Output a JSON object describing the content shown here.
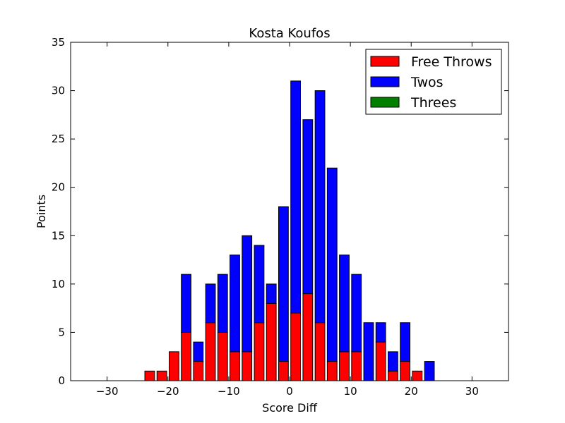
{
  "chart_data": {
    "type": "bar",
    "stacked": true,
    "title": "Kosta Koufos",
    "xlabel": "Score Diff",
    "ylabel": "Points",
    "xlim": [
      -36,
      36
    ],
    "ylim": [
      0,
      35
    ],
    "xticks": [
      -30,
      -20,
      -10,
      0,
      10,
      20,
      30
    ],
    "xtick_labels": [
      "−30",
      "−20",
      "−10",
      "0",
      "10",
      "20",
      "30"
    ],
    "yticks": [
      0,
      5,
      10,
      15,
      20,
      25,
      30,
      35
    ],
    "ytick_labels": [
      "0",
      "5",
      "10",
      "15",
      "20",
      "25",
      "30",
      "35"
    ],
    "grid": false,
    "legend_position": "top-right",
    "bar_width": 1.6,
    "x": [
      -35,
      -33,
      -31,
      -29,
      -27,
      -25,
      -23,
      -21,
      -19,
      -17,
      -15,
      -13,
      -11,
      -9,
      -7,
      -5,
      -3,
      -1,
      1,
      3,
      5,
      7,
      9,
      11,
      13,
      15,
      17,
      19,
      21,
      23,
      25,
      27,
      29,
      31,
      33,
      35
    ],
    "series": [
      {
        "name": "Free Throws",
        "color": "#ff0000",
        "values": [
          0,
          0,
          0,
          0,
          0,
          0,
          1,
          1,
          3,
          5,
          2,
          6,
          5,
          3,
          3,
          6,
          8,
          2,
          7,
          9,
          6,
          2,
          3,
          3,
          0,
          4,
          1,
          2,
          1,
          0,
          0,
          0,
          0,
          0,
          0,
          0
        ]
      },
      {
        "name": "Twos",
        "color": "#0000ff",
        "values": [
          0,
          0,
          0,
          0,
          0,
          0,
          0,
          0,
          0,
          6,
          2,
          4,
          6,
          10,
          12,
          8,
          2,
          16,
          24,
          18,
          24,
          20,
          10,
          8,
          6,
          2,
          2,
          4,
          0,
          2,
          0,
          0,
          0,
          0,
          0,
          0
        ]
      },
      {
        "name": "Threes",
        "color": "#008000",
        "values": [
          0,
          0,
          0,
          0,
          0,
          0,
          0,
          0,
          0,
          0,
          0,
          0,
          0,
          0,
          0,
          0,
          0,
          0,
          0,
          0,
          0,
          0,
          0,
          0,
          0,
          0,
          0,
          0,
          0,
          0,
          0,
          0,
          0,
          0,
          0,
          0
        ]
      }
    ]
  }
}
